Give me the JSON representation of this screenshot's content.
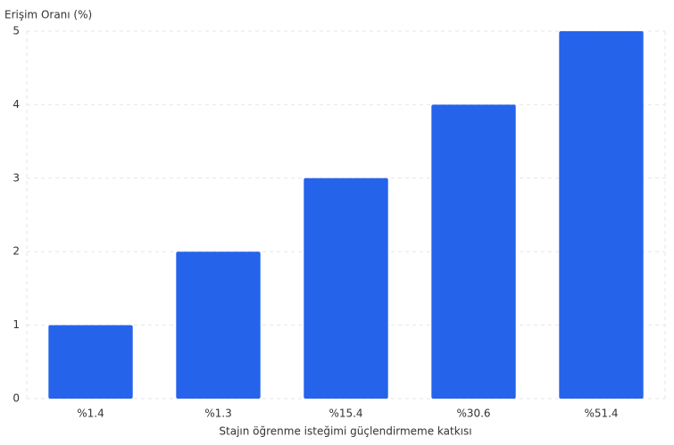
{
  "chart_data": {
    "type": "bar",
    "y_label": "Erişim Oranı (%)",
    "x_label": "Stajın öğrenme isteğimi güçlendirmeme katkısı",
    "categories": [
      "%1.4",
      "%1.3",
      "%15.4",
      "%30.6",
      "%51.4"
    ],
    "values": [
      1,
      2,
      3,
      4,
      5
    ],
    "color": "#2563eb",
    "ylim": [
      0,
      5
    ],
    "yticks": [
      0,
      1,
      2,
      3,
      4,
      5
    ],
    "grid": true
  }
}
